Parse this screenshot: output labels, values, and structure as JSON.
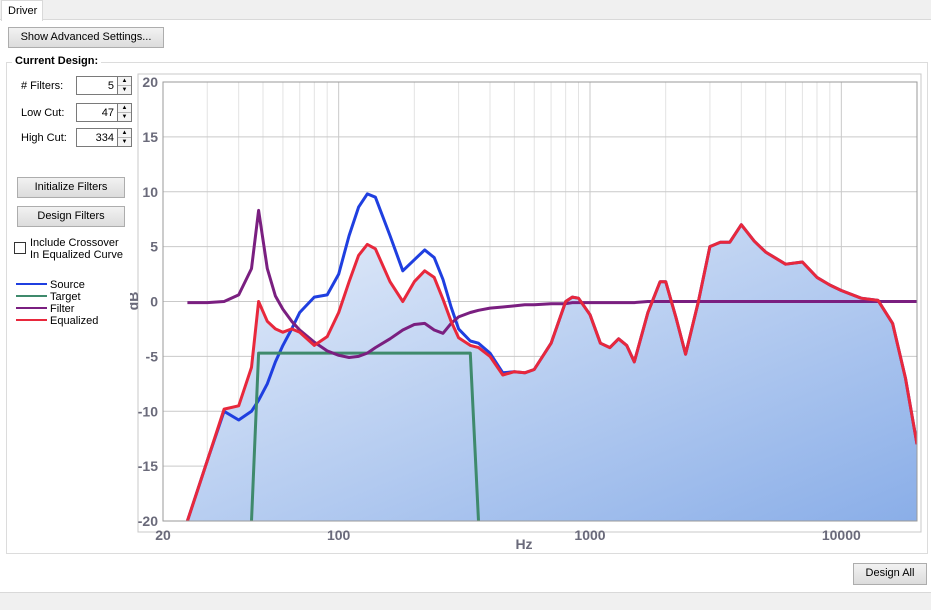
{
  "tab": "Driver",
  "buttons": {
    "advanced": "Show Advanced Settings...",
    "initialize": "Initialize Filters",
    "design": "Design Filters",
    "design_all": "Design All"
  },
  "group_title": "Current Design:",
  "fields": [
    {
      "label": "# Filters:",
      "value": 5
    },
    {
      "label": "Low Cut:",
      "value": 47
    },
    {
      "label": "High Cut:",
      "value": 334
    }
  ],
  "checkbox": {
    "label_lines": [
      "Include  Crossover",
      "In Equalized Curve"
    ],
    "checked": false
  },
  "chart_data": {
    "type": "line",
    "xlabel": "Hz",
    "ylabel": "dB",
    "x_scale": "log",
    "grid": true,
    "minor_grid": true,
    "fill_series": "Equalized",
    "xlim": [
      20,
      20000
    ],
    "xticks": [
      20,
      100,
      1000,
      10000
    ],
    "ylim": [
      -20,
      20
    ],
    "yticks": [
      -20,
      -15,
      -10,
      -5,
      0,
      5,
      10,
      15,
      20
    ],
    "x": [
      25,
      30,
      35,
      40,
      45,
      48,
      52,
      56,
      60,
      65,
      70,
      80,
      90,
      100,
      110,
      120,
      130,
      140,
      160,
      180,
      200,
      220,
      240,
      260,
      280,
      300,
      334,
      360,
      400,
      450,
      500,
      550,
      600,
      700,
      800,
      850,
      900,
      1000,
      1100,
      1200,
      1300,
      1400,
      1500,
      1700,
      1900,
      2000,
      2200,
      2400,
      2700,
      3000,
      3300,
      3600,
      4000,
      4500,
      5000,
      6000,
      7000,
      8000,
      9000,
      10000,
      12000,
      14000,
      16000,
      18000,
      20000
    ],
    "series": [
      {
        "name": "Source",
        "color": "#1f3fe0",
        "values": [
          -20,
          -14.5,
          -10,
          -10.8,
          -10,
          -9,
          -7.5,
          -5.5,
          -4,
          -2.5,
          -1,
          0.4,
          0.6,
          2.5,
          6,
          8.6,
          9.8,
          9.5,
          6,
          2.8,
          3.8,
          4.7,
          4,
          2,
          -0.5,
          -2.5,
          -3.6,
          -3.8,
          -4.7,
          -6.5,
          -6.4,
          -6.5,
          -6.2,
          -3.8,
          0,
          0.4,
          0.3,
          -1.2,
          -3.8,
          -4.2,
          -3.4,
          -4,
          -5.5,
          -1,
          1.8,
          1.8,
          -1.5,
          -4.8,
          0,
          5,
          5.4,
          5.4,
          7,
          5.5,
          4.5,
          3.4,
          3.6,
          2.2,
          1.5,
          1,
          0.3,
          0.1,
          -2,
          -7,
          -13
        ]
      },
      {
        "name": "Target",
        "color": "#3f8a6c",
        "values": [
          null,
          null,
          null,
          null,
          -20,
          -4.7,
          -4.7,
          -4.7,
          -4.7,
          -4.7,
          -4.7,
          -4.7,
          -4.7,
          -4.7,
          -4.7,
          -4.7,
          -4.7,
          -4.7,
          -4.7,
          -4.7,
          -4.7,
          -4.7,
          -4.7,
          -4.7,
          -4.7,
          -4.7,
          -4.7,
          -20,
          null,
          null,
          null,
          null,
          null,
          null,
          null,
          null,
          null,
          null,
          null,
          null,
          null,
          null,
          null,
          null,
          null,
          null,
          null,
          null,
          null,
          null,
          null,
          null,
          null,
          null,
          null,
          null,
          null,
          null,
          null,
          null,
          null,
          null,
          null,
          null,
          null
        ]
      },
      {
        "name": "Filter",
        "color": "#7a1f80",
        "values": [
          -0.1,
          -0.1,
          0,
          0.6,
          3,
          8.3,
          3,
          0.5,
          -0.7,
          -1.8,
          -2.6,
          -3.7,
          -4.5,
          -4.9,
          -5.1,
          -5,
          -4.7,
          -4.2,
          -3.4,
          -2.6,
          -2.1,
          -2,
          -2.6,
          -2.9,
          -2,
          -1.4,
          -1,
          -0.8,
          -0.6,
          -0.5,
          -0.4,
          -0.3,
          -0.3,
          -0.2,
          -0.2,
          -0.1,
          -0.1,
          -0.1,
          -0.1,
          -0.1,
          -0.1,
          -0.1,
          -0.1,
          0,
          0,
          0,
          0,
          0,
          0,
          0,
          0,
          0,
          0,
          0,
          0,
          0,
          0,
          0,
          0,
          0,
          0,
          0,
          0,
          0,
          0
        ]
      },
      {
        "name": "Equalized",
        "color": "#e8283c",
        "values": [
          -20,
          -14.5,
          -9.8,
          -9.5,
          -6,
          0,
          -1.8,
          -2.5,
          -2.8,
          -2.5,
          -2.8,
          -4,
          -3.2,
          -1,
          1.8,
          4.2,
          5.2,
          4.8,
          1.8,
          0,
          1.8,
          2.8,
          2.2,
          0.2,
          -1.8,
          -3.3,
          -4,
          -4.2,
          -5,
          -6.7,
          -6.4,
          -6.5,
          -6.2,
          -3.8,
          0,
          0.4,
          0.3,
          -1.2,
          -3.8,
          -4.2,
          -3.4,
          -4,
          -5.5,
          -1,
          1.8,
          1.8,
          -1.5,
          -4.8,
          0,
          5,
          5.4,
          5.4,
          7,
          5.5,
          4.5,
          3.4,
          3.6,
          2.2,
          1.5,
          1,
          0.3,
          0.1,
          -2,
          -7,
          -13
        ]
      }
    ]
  }
}
